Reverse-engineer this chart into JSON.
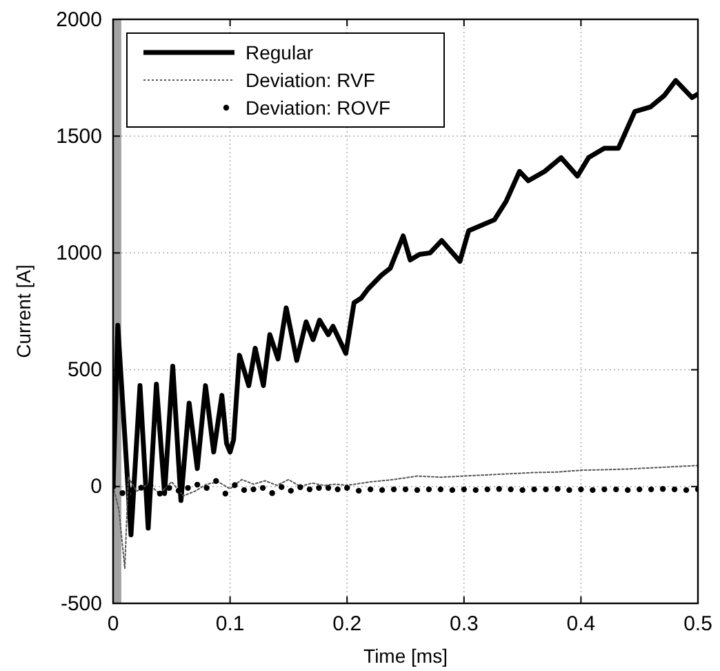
{
  "chart_data": {
    "type": "line",
    "xlabel": "Time [ms]",
    "ylabel": "Current [A]",
    "xlim": [
      0,
      0.5
    ],
    "ylim": [
      -500,
      2000
    ],
    "xticks": [
      0,
      0.1,
      0.2,
      0.3,
      0.4,
      0.5
    ],
    "yticks": [
      -500,
      0,
      500,
      1000,
      1500,
      2000
    ],
    "grid": true,
    "legend": "top left",
    "bands": [
      {
        "axis": "x",
        "from": 0,
        "to": 0.007,
        "color": "#8c8c8c"
      }
    ],
    "series": [
      {
        "name": "Regular",
        "color": "#000000",
        "line_style": "solid",
        "x": [
          0,
          0.004,
          0.0153,
          0.023,
          0.03,
          0.037,
          0.044,
          0.051,
          0.058,
          0.065,
          0.072,
          0.079,
          0.086,
          0.093,
          0.097,
          0.1,
          0.103,
          0.108,
          0.116,
          0.1215,
          0.1285,
          0.134,
          0.141,
          0.148,
          0.157,
          0.165,
          0.171,
          0.1765,
          0.184,
          0.188,
          0.199,
          0.206,
          0.212,
          0.218,
          0.2295,
          0.237,
          0.248,
          0.254,
          0.262,
          0.271,
          0.281,
          0.2965,
          0.304,
          0.326,
          0.336,
          0.3475,
          0.355,
          0.369,
          0.383,
          0.397,
          0.4065,
          0.42,
          0.432,
          0.446,
          0.4595,
          0.4715,
          0.481,
          0.495,
          0.5
        ],
        "values": [
          0,
          690,
          -207,
          432,
          -178,
          438,
          -30,
          515,
          -60,
          357,
          77,
          432,
          148,
          390,
          185,
          148,
          200,
          562,
          432,
          592,
          432,
          650,
          546,
          765,
          540,
          705,
          629,
          712,
          650,
          686,
          570,
          787,
          806,
          846,
          905,
          935,
          1073,
          970,
          994,
          1000,
          1053,
          964,
          1095,
          1142,
          1221,
          1349,
          1309,
          1349,
          1408,
          1329,
          1408,
          1448,
          1448,
          1605,
          1625,
          1675,
          1738,
          1665,
          1680
        ]
      },
      {
        "name": "Deviation: RVF",
        "color": "#555555",
        "line_style": "dotted",
        "x": [
          0,
          0.005,
          0.01,
          0.013,
          0.02,
          0.03,
          0.04,
          0.05,
          0.06,
          0.07,
          0.08,
          0.09,
          0.1,
          0.11,
          0.12,
          0.13,
          0.14,
          0.15,
          0.16,
          0.17,
          0.18,
          0.19,
          0.2,
          0.22,
          0.24,
          0.26,
          0.28,
          0.3,
          0.32,
          0.34,
          0.36,
          0.38,
          0.4,
          0.42,
          0.44,
          0.46,
          0.48,
          0.5
        ],
        "values": [
          0,
          -100,
          -350,
          40,
          -20,
          10,
          -30,
          20,
          -40,
          -20,
          10,
          20,
          -10,
          30,
          10,
          25,
          5,
          30,
          0,
          15,
          5,
          10,
          5,
          20,
          30,
          45,
          40,
          45,
          50,
          55,
          60,
          62,
          70,
          72,
          75,
          80,
          85,
          90
        ]
      },
      {
        "name": "Deviation: ROVF",
        "type": "scatter",
        "marker": "circle",
        "color": "#000000",
        "x": [
          0,
          0.008,
          0.016,
          0.024,
          0.032,
          0.04,
          0.048,
          0.056,
          0.064,
          0.072,
          0.08,
          0.088,
          0.096,
          0.104,
          0.112,
          0.12,
          0.128,
          0.136,
          0.144,
          0.152,
          0.16,
          0.168,
          0.176,
          0.184,
          0.192,
          0.2,
          0.21,
          0.22,
          0.23,
          0.24,
          0.25,
          0.26,
          0.27,
          0.28,
          0.29,
          0.3,
          0.31,
          0.32,
          0.33,
          0.34,
          0.35,
          0.36,
          0.37,
          0.38,
          0.39,
          0.4,
          0.41,
          0.42,
          0.43,
          0.44,
          0.45,
          0.46,
          0.47,
          0.48,
          0.49,
          0.5
        ],
        "values": [
          0,
          -28,
          -15,
          -5,
          5,
          -30,
          -6,
          -18,
          -6,
          8,
          -6,
          24,
          -30,
          6,
          -15,
          -12,
          -6,
          -28,
          -2,
          -18,
          -3,
          -12,
          -6,
          -6,
          -12,
          -6,
          -18,
          -12,
          -15,
          -12,
          -12,
          -15,
          -12,
          -12,
          -15,
          -12,
          -15,
          -12,
          -10,
          -12,
          -15,
          -12,
          -12,
          -10,
          -15,
          -12,
          -15,
          -12,
          -12,
          -15,
          -12,
          -12,
          -10,
          -12,
          -15,
          -12
        ]
      }
    ]
  }
}
